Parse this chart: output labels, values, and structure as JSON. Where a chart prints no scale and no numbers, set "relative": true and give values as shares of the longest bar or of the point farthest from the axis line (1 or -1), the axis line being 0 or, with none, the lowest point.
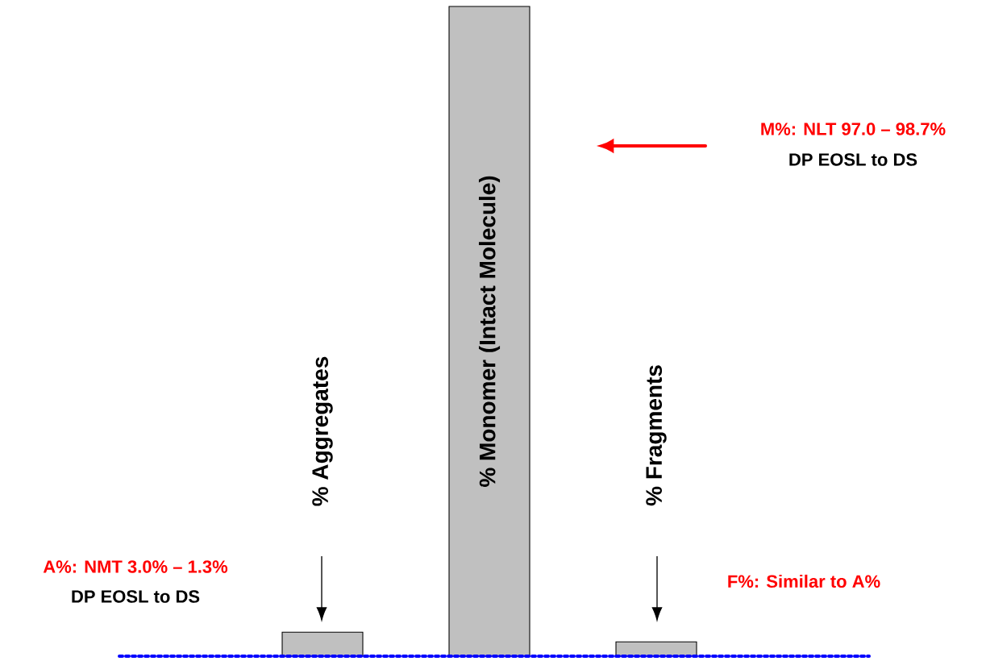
{
  "chart_data": {
    "type": "bar",
    "relative": true,
    "categories": [
      "% Aggregates",
      "% Monomer (Intact Molecule)",
      "% Fragments"
    ],
    "values": [
      0.037,
      1,
      0.022
    ],
    "color": "#c0c0c0",
    "ref_lines": [
      {
        "axis": "y",
        "value": 0,
        "color": "#0000ff",
        "line_style": "dotted"
      }
    ],
    "annotations": [
      "M%: NLT 97.0 – 98.7%",
      "DP EOSL to DS",
      "A%: NMT 3.0% – 1.3%",
      "DP EOSL to DS",
      "F%: Similar to A%"
    ]
  }
}
